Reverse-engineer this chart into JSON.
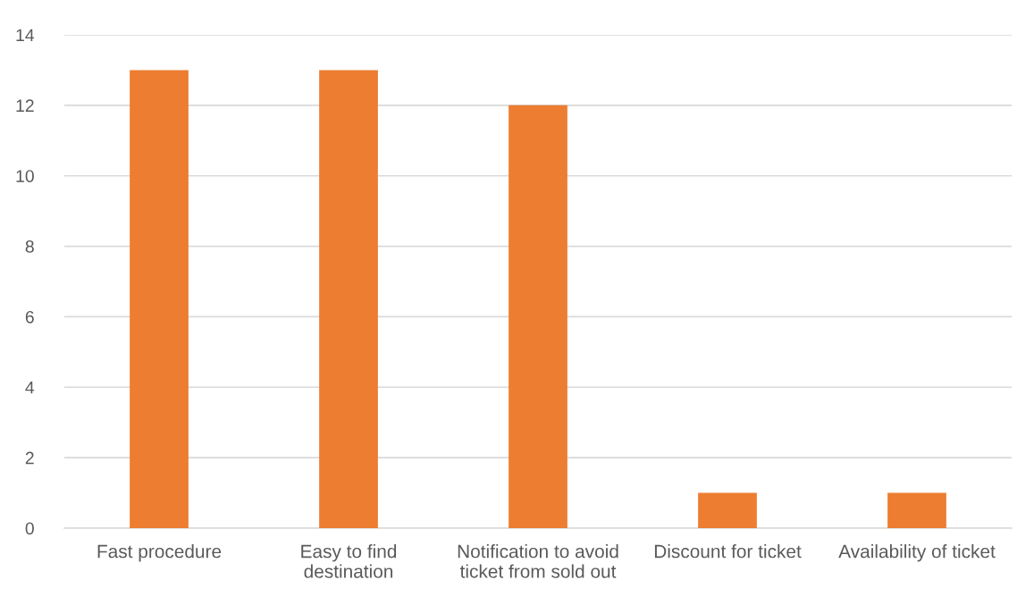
{
  "chart_data": {
    "type": "bar",
    "categories": [
      "Fast procedure",
      "Easy to find\ndestination",
      "Notification to avoid\nticket from sold out",
      "Discount for ticket",
      "Availability of ticket"
    ],
    "values": [
      13,
      13,
      12,
      1,
      1
    ],
    "color": "#ed7d31",
    "ylim": [
      0,
      14
    ],
    "yticks": [
      0,
      2,
      4,
      6,
      8,
      10,
      12,
      14
    ],
    "grid": "y",
    "legend": false
  }
}
